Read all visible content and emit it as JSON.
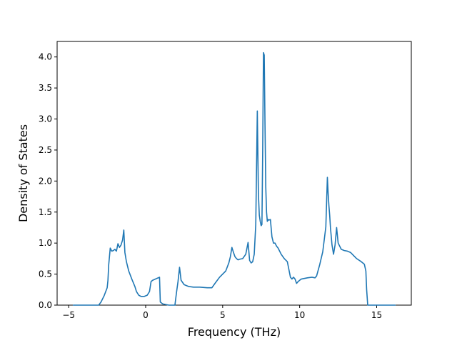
{
  "chart_data": {
    "type": "line",
    "title": "",
    "xlabel": "Frequency (THz)",
    "ylabel": "Density of States",
    "xlim": [
      -5.75,
      17.25
    ],
    "ylim": [
      0.0,
      4.25
    ],
    "xticks": [
      -5,
      0,
      5,
      10,
      15
    ],
    "yticks": [
      0.0,
      0.5,
      1.0,
      1.5,
      2.0,
      2.5,
      3.0,
      3.5,
      4.0
    ],
    "xtick_labels": [
      "−5",
      "0",
      "5",
      "10",
      "15"
    ],
    "ytick_labels": [
      "0.0",
      "0.5",
      "1.0",
      "1.5",
      "2.0",
      "2.5",
      "3.0",
      "3.5",
      "4.0"
    ],
    "grid": false,
    "legend": "none",
    "color": "#1f77b4",
    "series": [
      {
        "x": [
          -4.7,
          -3.05,
          -2.9,
          -2.7,
          -2.5,
          -2.45,
          -2.4,
          -2.3,
          -2.2,
          -2.1,
          -2.0,
          -1.9,
          -1.8,
          -1.7,
          -1.6,
          -1.5,
          -1.42,
          -1.35,
          -1.25,
          -1.1,
          -0.9,
          -0.7,
          -0.6,
          -0.45,
          -0.3,
          -0.1,
          0.1,
          0.25,
          0.35,
          0.45,
          0.9,
          0.95,
          1.0,
          1.1,
          1.3,
          1.5,
          1.7,
          1.9,
          2.0,
          2.1,
          2.2,
          2.3,
          2.5,
          2.8,
          3.1,
          3.5,
          4.0,
          4.3,
          4.5,
          4.8,
          5.0,
          5.2,
          5.4,
          5.5,
          5.6,
          5.7,
          5.8,
          5.9,
          6.0,
          6.1,
          6.3,
          6.5,
          6.65,
          6.75,
          6.85,
          6.95,
          7.05,
          7.15,
          7.25,
          7.32,
          7.38,
          7.44,
          7.5,
          7.55,
          7.6,
          7.65,
          7.7,
          7.75,
          7.8,
          7.85,
          7.9,
          7.95,
          8.0,
          8.1,
          8.2,
          8.3,
          8.4,
          8.5,
          8.6,
          8.7,
          8.8,
          9.0,
          9.2,
          9.4,
          9.5,
          9.6,
          9.7,
          9.8,
          9.9,
          10.0,
          10.1,
          10.3,
          10.5,
          10.8,
          11.0,
          11.1,
          11.3,
          11.5,
          11.7,
          11.8,
          11.85,
          11.9,
          11.95,
          12.0,
          12.1,
          12.2,
          12.3,
          12.4,
          12.5,
          12.6,
          12.7,
          12.9,
          13.1,
          13.3,
          13.5,
          13.7,
          14.0,
          14.2,
          14.3,
          14.35,
          14.42,
          14.5,
          16.2
        ],
        "y": [
          0.0,
          0.0,
          0.05,
          0.15,
          0.28,
          0.4,
          0.65,
          0.92,
          0.87,
          0.88,
          0.9,
          0.87,
          0.99,
          0.93,
          0.97,
          1.05,
          1.21,
          0.85,
          0.7,
          0.55,
          0.42,
          0.3,
          0.22,
          0.16,
          0.14,
          0.14,
          0.16,
          0.22,
          0.38,
          0.4,
          0.45,
          0.05,
          0.04,
          0.02,
          0.01,
          0.0,
          0.0,
          0.0,
          0.2,
          0.38,
          0.61,
          0.4,
          0.33,
          0.3,
          0.29,
          0.29,
          0.28,
          0.28,
          0.35,
          0.45,
          0.5,
          0.55,
          0.68,
          0.78,
          0.93,
          0.85,
          0.78,
          0.75,
          0.73,
          0.74,
          0.75,
          0.82,
          1.01,
          0.72,
          0.68,
          0.7,
          0.82,
          1.3,
          3.13,
          1.8,
          1.45,
          1.35,
          1.28,
          1.3,
          2.5,
          4.07,
          4.03,
          2.9,
          1.9,
          1.5,
          1.35,
          1.38,
          1.37,
          1.38,
          1.1,
          1.0,
          1.0,
          0.95,
          0.92,
          0.87,
          0.82,
          0.75,
          0.7,
          0.45,
          0.42,
          0.45,
          0.42,
          0.35,
          0.38,
          0.4,
          0.42,
          0.43,
          0.44,
          0.45,
          0.44,
          0.47,
          0.65,
          0.86,
          1.26,
          2.06,
          1.8,
          1.6,
          1.45,
          1.25,
          0.97,
          0.82,
          0.97,
          1.25,
          1.0,
          0.95,
          0.9,
          0.88,
          0.87,
          0.85,
          0.8,
          0.75,
          0.7,
          0.66,
          0.55,
          0.25,
          0.0,
          0.0,
          0.0
        ]
      }
    ]
  }
}
